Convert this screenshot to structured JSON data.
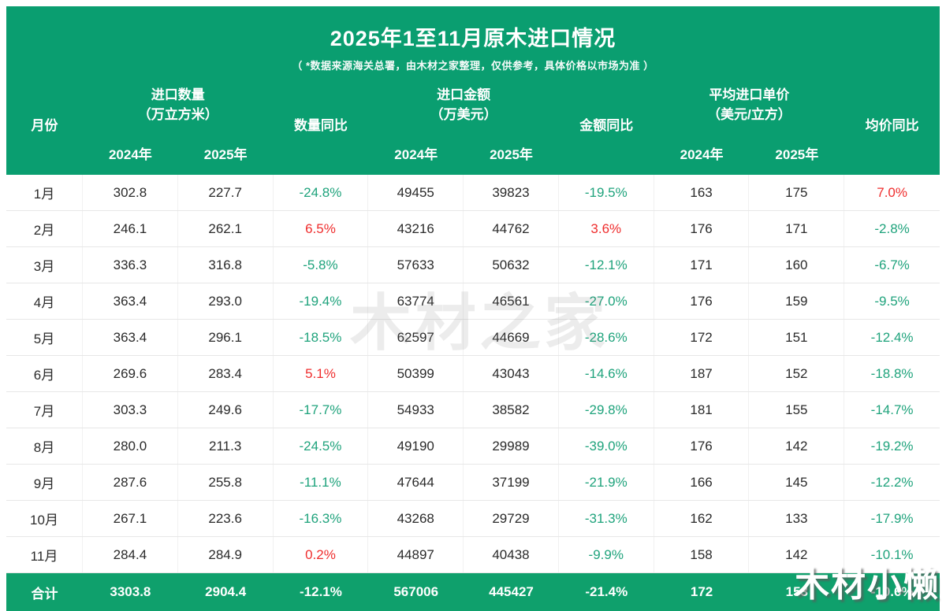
{
  "title": "2025年1至11月原木进口情况",
  "subtitle": "（ *数据来源海关总署，由木材之家整理，仅供参考，具体价格以市场为准 ）",
  "watermarks": {
    "center": "木材之家",
    "corner": "木材小懒"
  },
  "colors": {
    "banner_green": "#0a9e70",
    "total_row_green": "#0fa06c",
    "yoy_negative_green": "#1fa37c",
    "yoy_positive_red": "#ef2d2d"
  },
  "chart_data": {
    "type": "table",
    "title": "2025年1至11月原木进口情况",
    "subtitle": "（ *数据来源海关总署，由木材之家整理，仅供参考，具体价格以市场为准 ）",
    "row_header": "月份",
    "column_groups": [
      {
        "label": "进口数量",
        "unit": "（万立方米）",
        "columns": [
          "2024年",
          "2025年"
        ]
      },
      {
        "label": "数量同比"
      },
      {
        "label": "进口金额",
        "unit": "（万美元）",
        "columns": [
          "2024年",
          "2025年"
        ]
      },
      {
        "label": "金额同比"
      },
      {
        "label": "平均进口单价",
        "unit": "（美元/立方）",
        "columns": [
          "2024年",
          "2025年"
        ]
      },
      {
        "label": "均价同比"
      }
    ],
    "rows": [
      [
        "1月",
        "302.8",
        "227.7",
        "-24.8%",
        "49455",
        "39823",
        "-19.5%",
        "163",
        "175",
        "7.0%"
      ],
      [
        "2月",
        "246.1",
        "262.1",
        "6.5%",
        "43216",
        "44762",
        "3.6%",
        "176",
        "171",
        "-2.8%"
      ],
      [
        "3月",
        "336.3",
        "316.8",
        "-5.8%",
        "57633",
        "50632",
        "-12.1%",
        "171",
        "160",
        "-6.7%"
      ],
      [
        "4月",
        "363.4",
        "293.0",
        "-19.4%",
        "63774",
        "46561",
        "-27.0%",
        "176",
        "159",
        "-9.5%"
      ],
      [
        "5月",
        "363.4",
        "296.1",
        "-18.5%",
        "62597",
        "44669",
        "-28.6%",
        "172",
        "151",
        "-12.4%"
      ],
      [
        "6月",
        "269.6",
        "283.4",
        "5.1%",
        "50399",
        "43043",
        "-14.6%",
        "187",
        "152",
        "-18.8%"
      ],
      [
        "7月",
        "303.3",
        "249.6",
        "-17.7%",
        "54933",
        "38582",
        "-29.8%",
        "181",
        "155",
        "-14.7%"
      ],
      [
        "8月",
        "280.0",
        "211.3",
        "-24.5%",
        "49190",
        "29989",
        "-39.0%",
        "176",
        "142",
        "-19.2%"
      ],
      [
        "9月",
        "287.6",
        "255.8",
        "-11.1%",
        "47644",
        "37199",
        "-21.9%",
        "166",
        "145",
        "-12.2%"
      ],
      [
        "10月",
        "267.1",
        "223.6",
        "-16.3%",
        "43268",
        "29729",
        "-31.3%",
        "162",
        "133",
        "-17.9%"
      ],
      [
        "11月",
        "284.4",
        "284.9",
        "0.2%",
        "44897",
        "40438",
        "-9.9%",
        "158",
        "142",
        "-10.1%"
      ]
    ],
    "total": [
      "合计",
      "3303.8",
      "2904.4",
      "-12.1%",
      "567006",
      "445427",
      "-21.4%",
      "172",
      "153",
      "-10.6%"
    ]
  }
}
